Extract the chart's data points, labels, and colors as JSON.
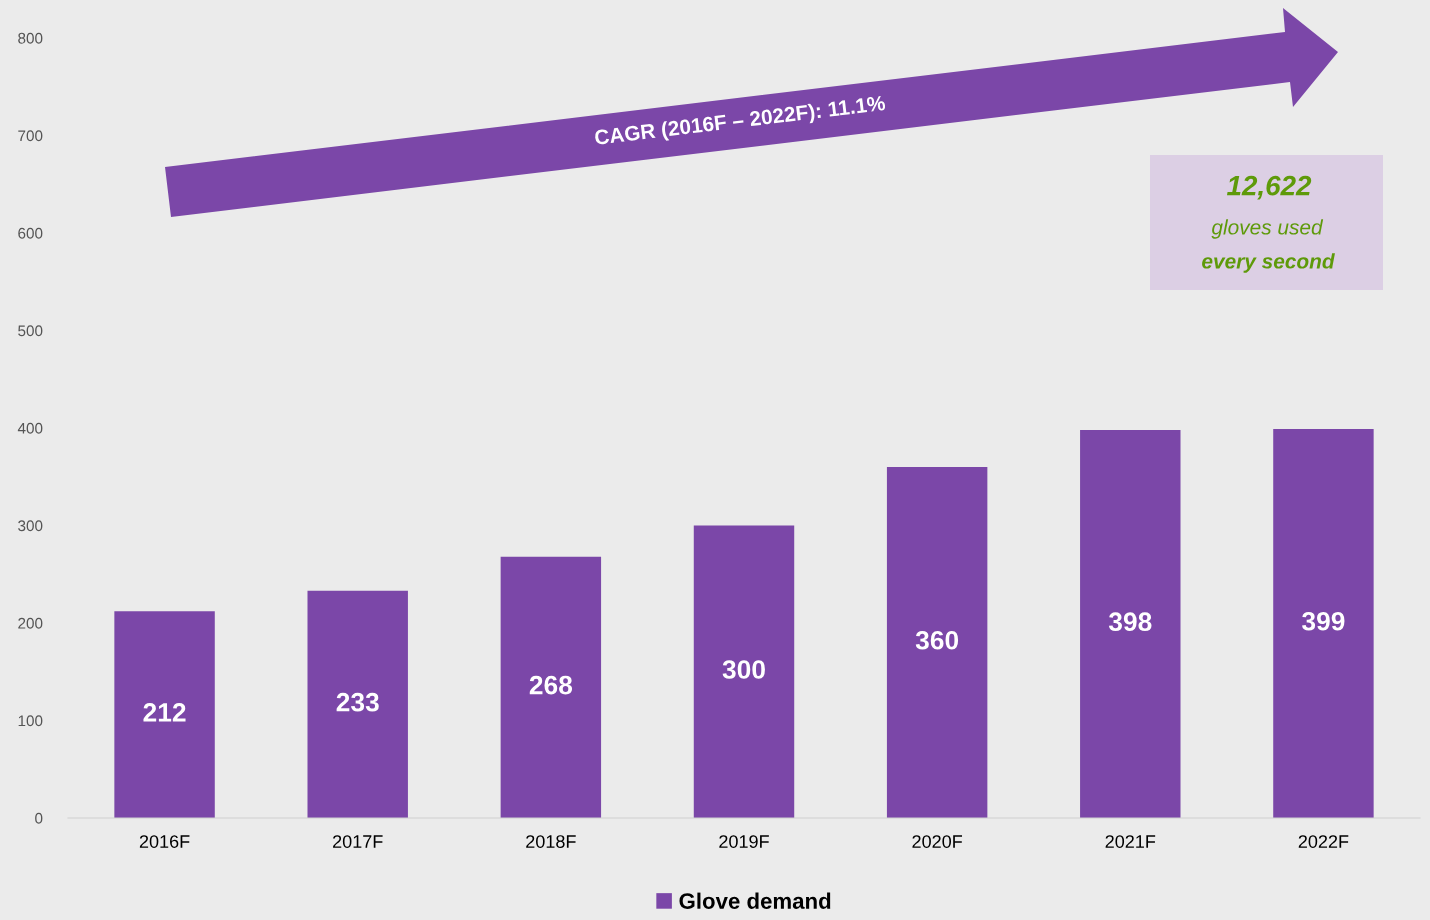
{
  "chart_data": {
    "type": "bar",
    "categories": [
      "2016F",
      "2017F",
      "2018F",
      "2019F",
      "2020F",
      "2021F",
      "2022F"
    ],
    "series": [
      {
        "name": "Glove demand",
        "color": "#7b47a8",
        "values": [
          212,
          233,
          268,
          300,
          360,
          398,
          399
        ]
      }
    ],
    "ylim": [
      0,
      800
    ],
    "yticks": [
      0,
      100,
      200,
      300,
      400,
      500,
      600,
      700,
      800
    ],
    "data_labels": true,
    "grid": false,
    "legend": "bottom",
    "annotations": [
      "CAGR (2016F – 2022F): 11.1%",
      "12,622",
      "gloves used",
      "every second"
    ]
  }
}
